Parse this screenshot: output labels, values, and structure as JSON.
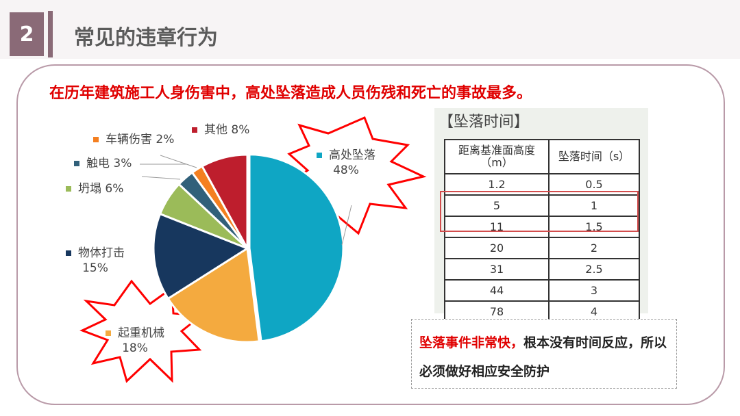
{
  "header": {
    "section_number": "2",
    "title": "常见的违章行为"
  },
  "headline": "在历年建筑施工人身伤害中，高处坠落造成人员伤残和死亡的事故最多。",
  "chart_data": {
    "type": "pie",
    "title": "",
    "slices": [
      {
        "name": "高处坠落",
        "value": 48,
        "label": "48%",
        "color": "#0fa6c4"
      },
      {
        "name": "起重机械",
        "value": 18,
        "label": "18%",
        "color": "#f4aa3f"
      },
      {
        "name": "物体打击",
        "value": 15,
        "label": "15%",
        "color": "#17375e"
      },
      {
        "name": "坍塌",
        "value": 6,
        "label": "6%",
        "color": "#9bbb59"
      },
      {
        "name": "触电",
        "value": 3,
        "label": "3%",
        "color": "#31607a"
      },
      {
        "name": "车辆伤害",
        "value": 2,
        "label": "2%",
        "color": "#f47f20"
      },
      {
        "name": "其他",
        "value": 8,
        "label": "8%",
        "color": "#be1e2d"
      }
    ]
  },
  "fall_table": {
    "title": "【坠落时间】",
    "headers": [
      "距离基准面高度（m）",
      "坠落时间（s）"
    ],
    "rows": [
      [
        "1.2",
        "0.5"
      ],
      [
        "5",
        "1"
      ],
      [
        "11",
        "1.5"
      ],
      [
        "20",
        "2"
      ],
      [
        "31",
        "2.5"
      ],
      [
        "44",
        "3"
      ],
      [
        "78",
        "4"
      ]
    ]
  },
  "note": {
    "highlight": "坠落事件非常快，",
    "rest": "根本没有时间反应，所以必须做好相应安全防护"
  },
  "colors": {
    "accent": "#8a6a77",
    "alert": "#e00000",
    "frame": "#b99aa8"
  }
}
